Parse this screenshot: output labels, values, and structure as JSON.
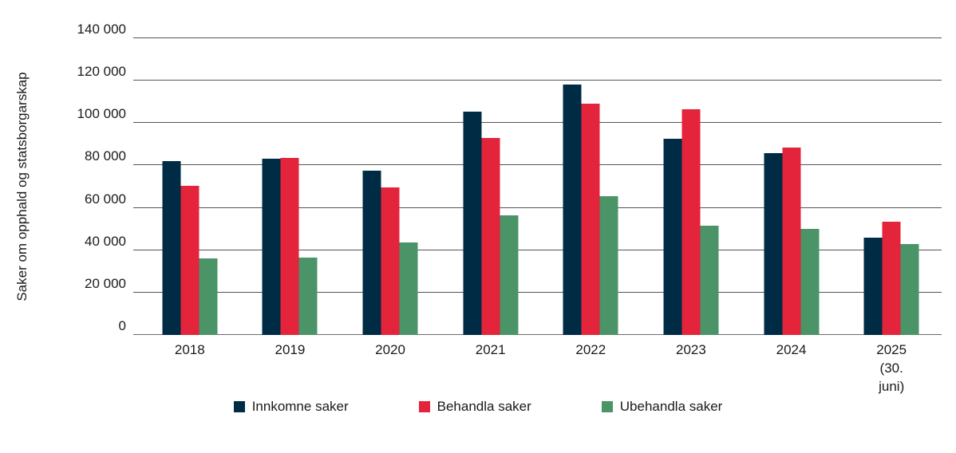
{
  "chart_data": {
    "type": "bar",
    "title": "",
    "ylabel": "Saker om opphald og statsborgarskap",
    "xlabel": "",
    "ylim": [
      0,
      140000
    ],
    "grid": true,
    "legend_position": "bottom-center",
    "ytick_values": [
      0,
      20000,
      40000,
      60000,
      80000,
      100000,
      120000,
      140000
    ],
    "ytick_labels": [
      "0",
      "20 000",
      "40 000",
      "60 000",
      "80 000",
      "100 000",
      "120 000",
      "140 000"
    ],
    "categories": [
      "2018",
      "2019",
      "2020",
      "2021",
      "2022",
      "2023",
      "2024",
      "2025\n(30. juni)"
    ],
    "series": [
      {
        "name": "Innkomne saker",
        "color": "#002b45",
        "values": [
          82000,
          83000,
          77500,
          105500,
          118000,
          92500,
          86000,
          46000
        ]
      },
      {
        "name": "Behandla saker",
        "color": "#e3243b",
        "values": [
          70500,
          83500,
          69500,
          93000,
          109000,
          106500,
          88500,
          53500
        ]
      },
      {
        "name": "Ubehandla saker",
        "color": "#4a9468",
        "values": [
          36000,
          36500,
          43500,
          56500,
          65500,
          51500,
          50000,
          43000
        ]
      }
    ]
  }
}
